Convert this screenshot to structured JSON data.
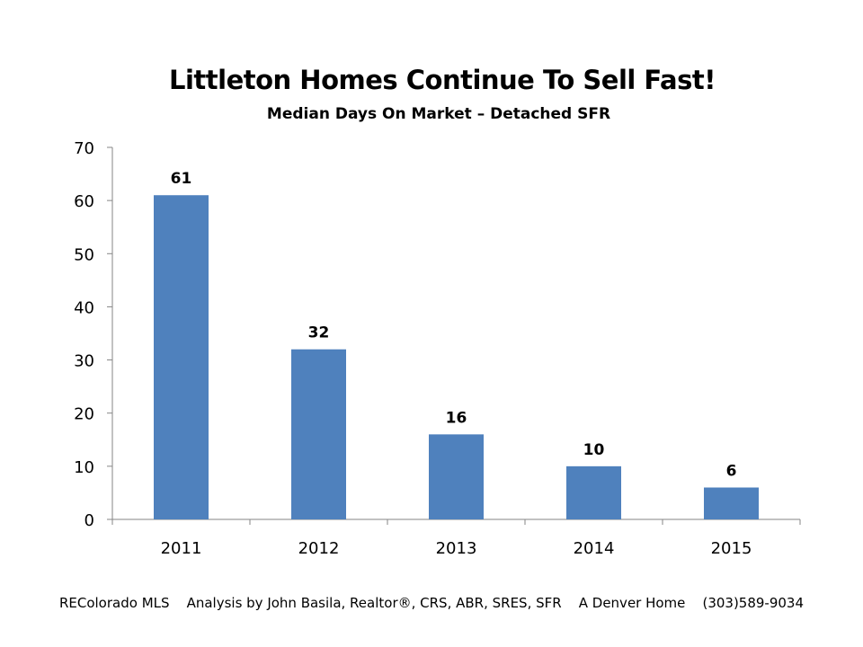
{
  "chart_data": {
    "type": "bar",
    "title": "Littleton Homes Continue To Sell Fast!",
    "subtitle": "Median Days On Market – Detached SFR",
    "categories": [
      "2011",
      "2012",
      "2013",
      "2014",
      "2015"
    ],
    "values": [
      61,
      32,
      16,
      10,
      6
    ],
    "ylim": [
      0,
      70
    ],
    "yticks": [
      0,
      10,
      20,
      30,
      40,
      50,
      60,
      70
    ],
    "grid": false,
    "bar_color": "#4F81BD",
    "data_labels": true
  },
  "footer": "REColorado MLS    Analysis by John Basila, Realtor®, CRS, ABR, SRES, SFR    A Denver Home    (303)589-9034"
}
